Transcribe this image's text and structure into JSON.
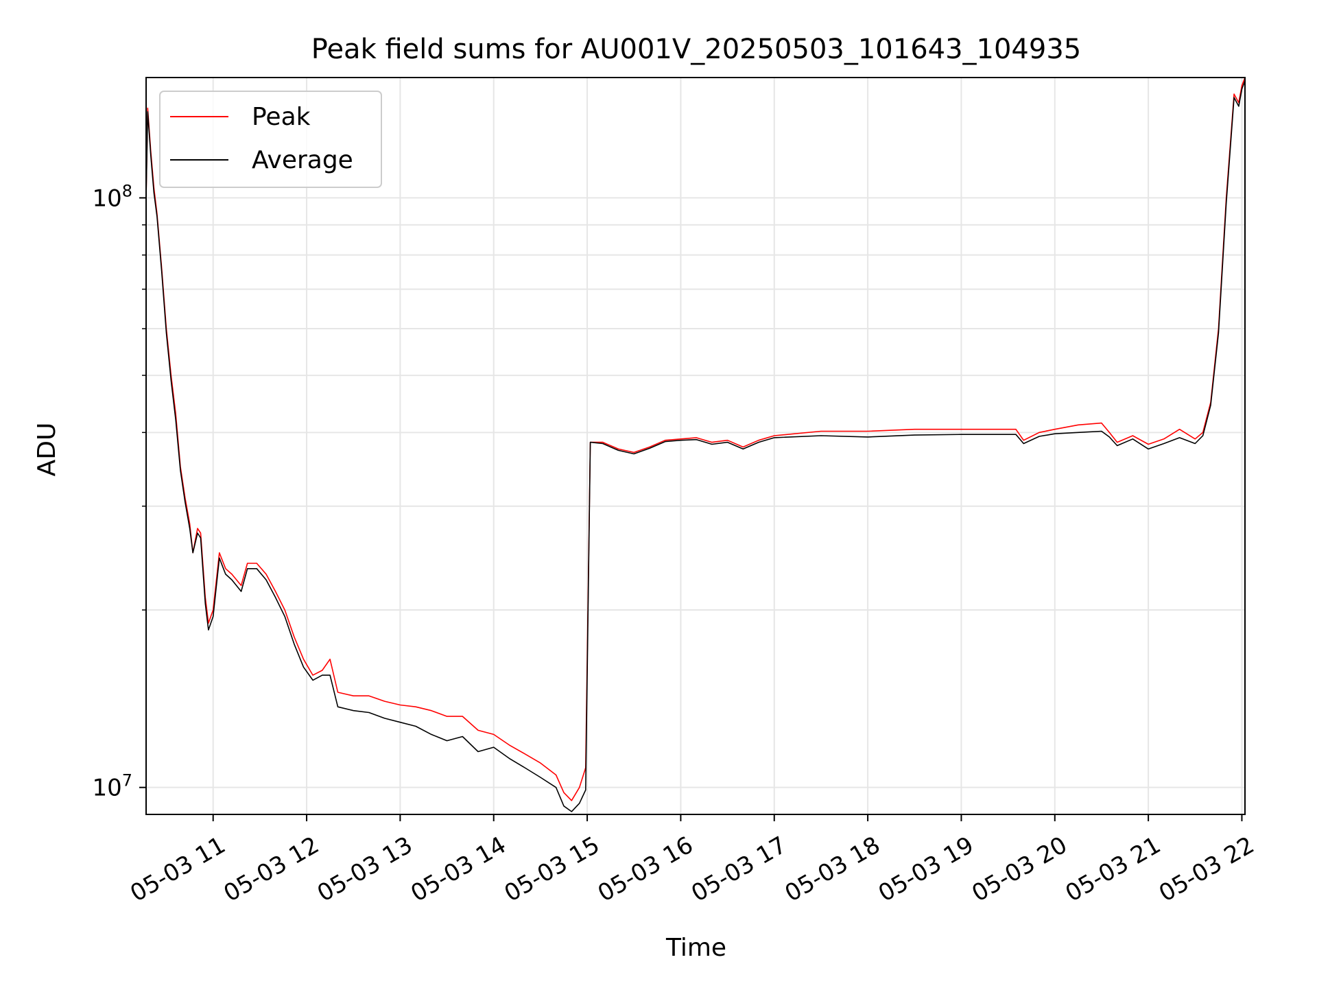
{
  "chart_data": {
    "type": "line",
    "title": "Peak field sums for AU001V_20250503_101643_104935",
    "xlabel": "Time",
    "ylabel": "ADU",
    "y_scale": "log",
    "ylim": [
      9000000,
      160000000
    ],
    "xlim": [
      "2025-05-03T10:17",
      "2025-05-03T22:02"
    ],
    "grid": true,
    "legend_position": "top-left",
    "x_ticks": [
      {
        "t": "2025-05-03T11:00",
        "label": "05-03 11"
      },
      {
        "t": "2025-05-03T12:00",
        "label": "05-03 12"
      },
      {
        "t": "2025-05-03T13:00",
        "label": "05-03 13"
      },
      {
        "t": "2025-05-03T14:00",
        "label": "05-03 14"
      },
      {
        "t": "2025-05-03T15:00",
        "label": "05-03 15"
      },
      {
        "t": "2025-05-03T16:00",
        "label": "05-03 16"
      },
      {
        "t": "2025-05-03T17:00",
        "label": "05-03 17"
      },
      {
        "t": "2025-05-03T18:00",
        "label": "05-03 18"
      },
      {
        "t": "2025-05-03T19:00",
        "label": "05-03 19"
      },
      {
        "t": "2025-05-03T20:00",
        "label": "05-03 20"
      },
      {
        "t": "2025-05-03T21:00",
        "label": "05-03 21"
      },
      {
        "t": "2025-05-03T22:00",
        "label": "05-03 22"
      }
    ],
    "y_major_ticks": [
      {
        "value": 10000000,
        "base": "10",
        "exp": "7"
      },
      {
        "value": 100000000,
        "base": "10",
        "exp": "8"
      }
    ],
    "series": [
      {
        "name": "Peak",
        "color": "#ff0000",
        "points": [
          [
            "2025-05-03T10:17",
            100000000
          ],
          [
            "2025-05-03T10:18",
            142000000
          ],
          [
            "2025-05-03T10:20",
            120000000
          ],
          [
            "2025-05-03T10:22",
            104000000
          ],
          [
            "2025-05-03T10:24",
            94000000
          ],
          [
            "2025-05-03T10:27",
            76000000
          ],
          [
            "2025-05-03T10:30",
            60000000
          ],
          [
            "2025-05-03T10:33",
            50000000
          ],
          [
            "2025-05-03T10:36",
            43000000
          ],
          [
            "2025-05-03T10:39",
            35000000
          ],
          [
            "2025-05-03T10:42",
            31000000
          ],
          [
            "2025-05-03T10:45",
            28000000
          ],
          [
            "2025-05-03T10:47",
            25000000
          ],
          [
            "2025-05-03T10:50",
            27500000
          ],
          [
            "2025-05-03T10:52",
            27000000
          ],
          [
            "2025-05-03T10:55",
            21000000
          ],
          [
            "2025-05-03T10:57",
            19000000
          ],
          [
            "2025-05-03T11:00",
            20000000
          ],
          [
            "2025-05-03T11:04",
            25000000
          ],
          [
            "2025-05-03T11:08",
            23500000
          ],
          [
            "2025-05-03T11:12",
            23000000
          ],
          [
            "2025-05-03T11:18",
            22000000
          ],
          [
            "2025-05-03T11:22",
            24000000
          ],
          [
            "2025-05-03T11:28",
            24000000
          ],
          [
            "2025-05-03T11:34",
            23000000
          ],
          [
            "2025-05-03T11:40",
            21500000
          ],
          [
            "2025-05-03T11:46",
            20000000
          ],
          [
            "2025-05-03T11:52",
            18000000
          ],
          [
            "2025-05-03T11:58",
            16500000
          ],
          [
            "2025-05-03T12:04",
            15500000
          ],
          [
            "2025-05-03T12:10",
            15800000
          ],
          [
            "2025-05-03T12:15",
            16500000
          ],
          [
            "2025-05-03T12:20",
            14500000
          ],
          [
            "2025-05-03T12:30",
            14300000
          ],
          [
            "2025-05-03T12:40",
            14300000
          ],
          [
            "2025-05-03T12:50",
            14000000
          ],
          [
            "2025-05-03T13:00",
            13800000
          ],
          [
            "2025-05-03T13:10",
            13700000
          ],
          [
            "2025-05-03T13:20",
            13500000
          ],
          [
            "2025-05-03T13:30",
            13200000
          ],
          [
            "2025-05-03T13:40",
            13200000
          ],
          [
            "2025-05-03T13:50",
            12500000
          ],
          [
            "2025-05-03T14:00",
            12300000
          ],
          [
            "2025-05-03T14:10",
            11800000
          ],
          [
            "2025-05-03T14:20",
            11400000
          ],
          [
            "2025-05-03T14:30",
            11000000
          ],
          [
            "2025-05-03T14:40",
            10500000
          ],
          [
            "2025-05-03T14:45",
            9800000
          ],
          [
            "2025-05-03T14:50",
            9500000
          ],
          [
            "2025-05-03T14:55",
            10000000
          ],
          [
            "2025-05-03T14:59",
            10800000
          ],
          [
            "2025-05-03T15:02",
            38500000
          ],
          [
            "2025-05-03T15:10",
            38500000
          ],
          [
            "2025-05-03T15:20",
            37500000
          ],
          [
            "2025-05-03T15:30",
            37000000
          ],
          [
            "2025-05-03T15:40",
            37800000
          ],
          [
            "2025-05-03T15:50",
            38800000
          ],
          [
            "2025-05-03T16:00",
            39000000
          ],
          [
            "2025-05-03T16:10",
            39200000
          ],
          [
            "2025-05-03T16:20",
            38500000
          ],
          [
            "2025-05-03T16:30",
            38800000
          ],
          [
            "2025-05-03T16:40",
            37800000
          ],
          [
            "2025-05-03T16:50",
            38800000
          ],
          [
            "2025-05-03T17:00",
            39500000
          ],
          [
            "2025-05-03T17:30",
            40200000
          ],
          [
            "2025-05-03T18:00",
            40200000
          ],
          [
            "2025-05-03T18:30",
            40500000
          ],
          [
            "2025-05-03T19:00",
            40500000
          ],
          [
            "2025-05-03T19:35",
            40500000
          ],
          [
            "2025-05-03T19:40",
            38800000
          ],
          [
            "2025-05-03T19:50",
            40000000
          ],
          [
            "2025-05-03T20:00",
            40500000
          ],
          [
            "2025-05-03T20:15",
            41200000
          ],
          [
            "2025-05-03T20:30",
            41500000
          ],
          [
            "2025-05-03T20:35",
            40000000
          ],
          [
            "2025-05-03T20:40",
            38500000
          ],
          [
            "2025-05-03T20:50",
            39500000
          ],
          [
            "2025-05-03T21:00",
            38200000
          ],
          [
            "2025-05-03T21:10",
            39000000
          ],
          [
            "2025-05-03T21:20",
            40500000
          ],
          [
            "2025-05-03T21:30",
            39000000
          ],
          [
            "2025-05-03T21:35",
            40000000
          ],
          [
            "2025-05-03T21:40",
            45000000
          ],
          [
            "2025-05-03T21:45",
            60000000
          ],
          [
            "2025-05-03T21:50",
            100000000
          ],
          [
            "2025-05-03T21:55",
            150000000
          ],
          [
            "2025-05-03T21:58",
            145000000
          ],
          [
            "2025-05-03T22:00",
            155000000
          ],
          [
            "2025-05-03T22:02",
            160000000
          ]
        ]
      },
      {
        "name": "Average",
        "color": "#000000",
        "points": [
          [
            "2025-05-03T10:17",
            100000000
          ],
          [
            "2025-05-03T10:18",
            140000000
          ],
          [
            "2025-05-03T10:20",
            118000000
          ],
          [
            "2025-05-03T10:22",
            102000000
          ],
          [
            "2025-05-03T10:24",
            93000000
          ],
          [
            "2025-05-03T10:27",
            75000000
          ],
          [
            "2025-05-03T10:30",
            59000000
          ],
          [
            "2025-05-03T10:33",
            49000000
          ],
          [
            "2025-05-03T10:36",
            42000000
          ],
          [
            "2025-05-03T10:39",
            34500000
          ],
          [
            "2025-05-03T10:42",
            30500000
          ],
          [
            "2025-05-03T10:45",
            27500000
          ],
          [
            "2025-05-03T10:47",
            25000000
          ],
          [
            "2025-05-03T10:50",
            27000000
          ],
          [
            "2025-05-03T10:52",
            26500000
          ],
          [
            "2025-05-03T10:55",
            20500000
          ],
          [
            "2025-05-03T10:57",
            18500000
          ],
          [
            "2025-05-03T11:00",
            19500000
          ],
          [
            "2025-05-03T11:04",
            24500000
          ],
          [
            "2025-05-03T11:08",
            23000000
          ],
          [
            "2025-05-03T11:12",
            22500000
          ],
          [
            "2025-05-03T11:18",
            21500000
          ],
          [
            "2025-05-03T11:22",
            23500000
          ],
          [
            "2025-05-03T11:28",
            23500000
          ],
          [
            "2025-05-03T11:34",
            22500000
          ],
          [
            "2025-05-03T11:40",
            21000000
          ],
          [
            "2025-05-03T11:46",
            19500000
          ],
          [
            "2025-05-03T11:52",
            17500000
          ],
          [
            "2025-05-03T11:58",
            16000000
          ],
          [
            "2025-05-03T12:04",
            15200000
          ],
          [
            "2025-05-03T12:10",
            15500000
          ],
          [
            "2025-05-03T12:15",
            15500000
          ],
          [
            "2025-05-03T12:20",
            13700000
          ],
          [
            "2025-05-03T12:30",
            13500000
          ],
          [
            "2025-05-03T12:40",
            13400000
          ],
          [
            "2025-05-03T12:50",
            13100000
          ],
          [
            "2025-05-03T13:00",
            12900000
          ],
          [
            "2025-05-03T13:10",
            12700000
          ],
          [
            "2025-05-03T13:20",
            12300000
          ],
          [
            "2025-05-03T13:30",
            12000000
          ],
          [
            "2025-05-03T13:40",
            12200000
          ],
          [
            "2025-05-03T13:50",
            11500000
          ],
          [
            "2025-05-03T14:00",
            11700000
          ],
          [
            "2025-05-03T14:10",
            11200000
          ],
          [
            "2025-05-03T14:20",
            10800000
          ],
          [
            "2025-05-03T14:30",
            10400000
          ],
          [
            "2025-05-03T14:40",
            10000000
          ],
          [
            "2025-05-03T14:45",
            9300000
          ],
          [
            "2025-05-03T14:50",
            9100000
          ],
          [
            "2025-05-03T14:55",
            9400000
          ],
          [
            "2025-05-03T14:59",
            9900000
          ],
          [
            "2025-05-03T15:02",
            38500000
          ],
          [
            "2025-05-03T15:10",
            38300000
          ],
          [
            "2025-05-03T15:20",
            37300000
          ],
          [
            "2025-05-03T15:30",
            36800000
          ],
          [
            "2025-05-03T15:40",
            37600000
          ],
          [
            "2025-05-03T15:50",
            38600000
          ],
          [
            "2025-05-03T16:00",
            38800000
          ],
          [
            "2025-05-03T16:10",
            38900000
          ],
          [
            "2025-05-03T16:20",
            38200000
          ],
          [
            "2025-05-03T16:30",
            38500000
          ],
          [
            "2025-05-03T16:40",
            37500000
          ],
          [
            "2025-05-03T16:50",
            38500000
          ],
          [
            "2025-05-03T17:00",
            39200000
          ],
          [
            "2025-05-03T17:30",
            39500000
          ],
          [
            "2025-05-03T18:00",
            39300000
          ],
          [
            "2025-05-03T18:30",
            39600000
          ],
          [
            "2025-05-03T19:00",
            39700000
          ],
          [
            "2025-05-03T19:35",
            39700000
          ],
          [
            "2025-05-03T19:40",
            38300000
          ],
          [
            "2025-05-03T19:50",
            39400000
          ],
          [
            "2025-05-03T20:00",
            39800000
          ],
          [
            "2025-05-03T20:15",
            40000000
          ],
          [
            "2025-05-03T20:30",
            40200000
          ],
          [
            "2025-05-03T20:35",
            39300000
          ],
          [
            "2025-05-03T20:40",
            38000000
          ],
          [
            "2025-05-03T20:50",
            39000000
          ],
          [
            "2025-05-03T21:00",
            37500000
          ],
          [
            "2025-05-03T21:10",
            38300000
          ],
          [
            "2025-05-03T21:20",
            39200000
          ],
          [
            "2025-05-03T21:30",
            38300000
          ],
          [
            "2025-05-03T21:35",
            39500000
          ],
          [
            "2025-05-03T21:40",
            44500000
          ],
          [
            "2025-05-03T21:45",
            59000000
          ],
          [
            "2025-05-03T21:50",
            98000000
          ],
          [
            "2025-05-03T21:55",
            148000000
          ],
          [
            "2025-05-03T21:58",
            143000000
          ],
          [
            "2025-05-03T22:00",
            153000000
          ],
          [
            "2025-05-03T22:02",
            158000000
          ]
        ]
      }
    ]
  }
}
